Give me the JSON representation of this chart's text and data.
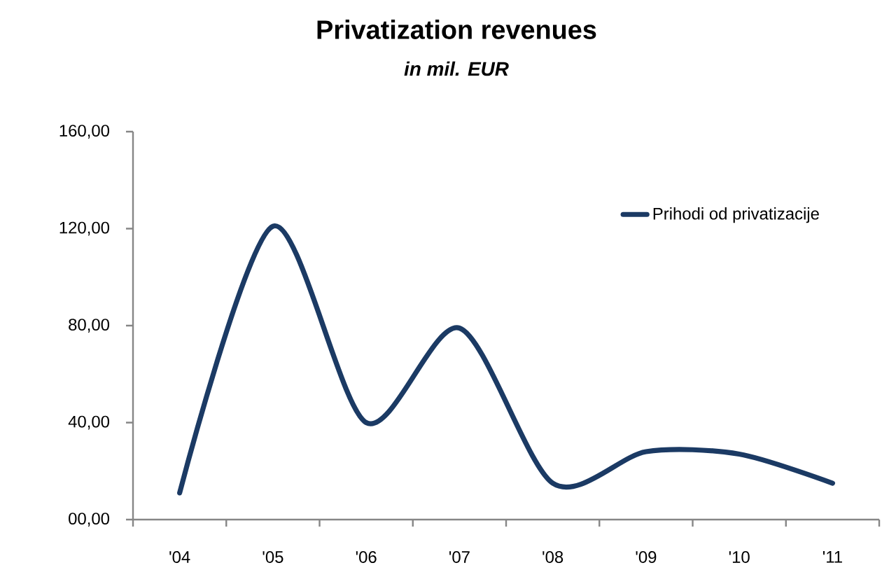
{
  "chart_data": {
    "type": "line",
    "title": "Privatization revenues",
    "subtitle": "in mil. EUR",
    "categories": [
      "'04",
      "'05",
      "'06",
      "'07",
      "'08",
      "'09",
      "'10",
      "'11"
    ],
    "series": [
      {
        "name": "Prihodi od privatizacije",
        "color": "#1b3a64",
        "values": [
          11,
          121,
          40,
          79,
          15,
          28,
          27,
          15
        ]
      }
    ],
    "ylim": [
      0,
      160
    ],
    "yticks": [
      {
        "value": 0,
        "label": "00,00"
      },
      {
        "value": 40,
        "label": "40,00"
      },
      {
        "value": 80,
        "label": "80,00"
      },
      {
        "value": 120,
        "label": "120,00"
      },
      {
        "value": 160,
        "label": "160,00"
      }
    ],
    "legend": "top right"
  }
}
